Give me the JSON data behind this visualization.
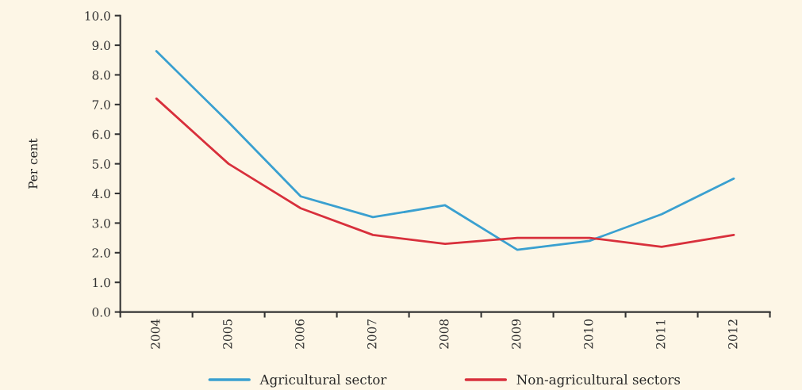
{
  "chart_data": {
    "type": "line",
    "ylabel": "Per cent",
    "categories": [
      "2004",
      "2005",
      "2006",
      "2007",
      "2008",
      "2009",
      "2010",
      "2011",
      "2012"
    ],
    "series": [
      {
        "name": "Agricultural sector",
        "color": "#3aa0d0",
        "values": [
          8.8,
          6.4,
          3.9,
          3.2,
          3.6,
          2.1,
          2.4,
          3.3,
          4.5
        ]
      },
      {
        "name": "Non-agricultural sectors",
        "color": "#d8303c",
        "values": [
          7.2,
          5.0,
          3.5,
          2.6,
          2.3,
          2.5,
          2.5,
          2.2,
          2.6
        ]
      }
    ],
    "ylim": [
      0,
      10
    ],
    "yticks": [
      {
        "value": 0,
        "label": "0.0"
      },
      {
        "value": 1,
        "label": "1.0"
      },
      {
        "value": 2,
        "label": "2.0"
      },
      {
        "value": 3,
        "label": "3.0"
      },
      {
        "value": 4,
        "label": "4.0"
      },
      {
        "value": 5,
        "label": "5.0"
      },
      {
        "value": 6,
        "label": "6.0"
      },
      {
        "value": 7,
        "label": "7.0"
      },
      {
        "value": 8,
        "label": "8.0"
      },
      {
        "value": 9,
        "label": "9.0"
      },
      {
        "value": 10,
        "label": "10.0"
      }
    ],
    "grid": false,
    "legend": "bottom",
    "line_style": "solid",
    "marker": "none"
  }
}
